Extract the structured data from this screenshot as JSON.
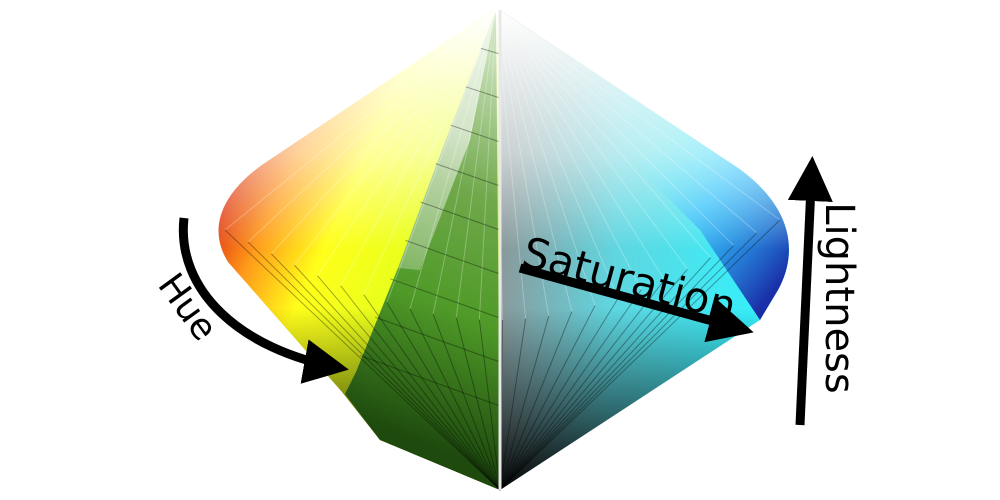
{
  "diagram": {
    "labels": {
      "hue": "Hue",
      "saturation": "Saturation",
      "lightness": "Lightness"
    },
    "colors": {
      "red": "#e8341c",
      "yellow": "#ffff1a",
      "green": "#4fa12a",
      "cyan": "#37f6ff",
      "blue": "#1a3fb8",
      "white": "#ffffff",
      "black": "#000000",
      "arrow": "#000000"
    }
  }
}
